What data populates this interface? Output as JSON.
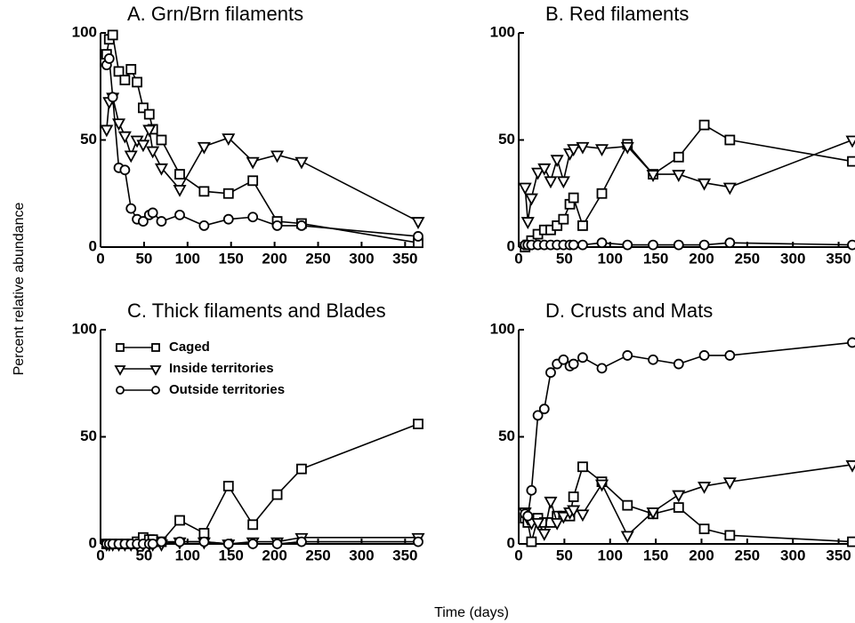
{
  "y_label": "Percent relative abundance",
  "x_label": "Time (days)",
  "chart_data": [
    {
      "type": "line",
      "title": "A.  Grn/Brn filaments",
      "x": [
        7,
        10,
        14,
        21,
        28,
        35,
        42,
        49,
        56,
        60,
        70,
        91,
        119,
        147,
        175,
        203,
        231,
        365
      ],
      "series": [
        {
          "marker": "square",
          "color": "#000",
          "values": [
            90,
            97,
            99,
            82,
            78,
            83,
            77,
            65,
            62,
            55,
            50,
            34,
            26,
            25,
            31,
            12,
            11,
            2
          ]
        },
        {
          "marker": "triangle",
          "color": "#000",
          "values": [
            55,
            68,
            70,
            58,
            52,
            43,
            50,
            48,
            55,
            45,
            37,
            27,
            47,
            51,
            40,
            43,
            40,
            12
          ]
        },
        {
          "marker": "circle",
          "color": "#000",
          "values": [
            85,
            88,
            70,
            37,
            36,
            18,
            13,
            12,
            15,
            16,
            12,
            15,
            10,
            13,
            14,
            10,
            10,
            5
          ]
        }
      ],
      "xlim": [
        0,
        365
      ],
      "xticks": [
        0,
        50,
        100,
        150,
        200,
        250,
        300,
        350
      ],
      "ylim": [
        0,
        100
      ],
      "yticks": [
        0,
        50,
        100
      ]
    },
    {
      "type": "line",
      "title": "B.  Red filaments",
      "x": [
        7,
        10,
        14,
        21,
        28,
        35,
        42,
        49,
        56,
        60,
        70,
        91,
        119,
        147,
        175,
        203,
        231,
        365
      ],
      "series": [
        {
          "marker": "square",
          "color": "#000",
          "values": [
            0,
            1,
            3,
            6,
            8,
            8,
            10,
            13,
            20,
            23,
            10,
            25,
            48,
            34,
            42,
            57,
            50,
            40
          ]
        },
        {
          "marker": "triangle",
          "color": "#000",
          "values": [
            28,
            12,
            23,
            35,
            37,
            31,
            41,
            31,
            44,
            46,
            47,
            46,
            47,
            34,
            34,
            30,
            28,
            50
          ]
        },
        {
          "marker": "circle",
          "color": "#000",
          "values": [
            1,
            1,
            1,
            1,
            1,
            1,
            1,
            1,
            1,
            1,
            1,
            2,
            1,
            1,
            1,
            1,
            2,
            1
          ]
        }
      ],
      "xlim": [
        0,
        365
      ],
      "xticks": [
        0,
        50,
        100,
        150,
        200,
        250,
        300,
        350
      ],
      "ylim": [
        0,
        100
      ],
      "yticks": [
        0,
        50,
        100
      ]
    },
    {
      "type": "line",
      "title": "C.  Thick filaments and Blades",
      "legend": "upper left",
      "x": [
        7,
        10,
        14,
        21,
        28,
        35,
        42,
        49,
        56,
        60,
        70,
        91,
        119,
        147,
        175,
        203,
        231,
        365
      ],
      "series": [
        {
          "name": "Caged",
          "marker": "square",
          "color": "#000",
          "values": [
            0,
            0,
            0,
            0,
            0,
            0,
            1,
            3,
            2,
            2,
            1,
            11,
            5,
            27,
            9,
            23,
            35,
            56
          ]
        },
        {
          "name": "Inside territories",
          "marker": "triangle",
          "color": "#000",
          "values": [
            0,
            0,
            0,
            0,
            0,
            0,
            0,
            0,
            0,
            0,
            0,
            1,
            1,
            0,
            1,
            1,
            3,
            3
          ]
        },
        {
          "name": "Outside territories",
          "marker": "circle",
          "color": "#000",
          "values": [
            0,
            0,
            0,
            0,
            0,
            0,
            0,
            0,
            0,
            0,
            1,
            1,
            1,
            0,
            0,
            0,
            1,
            1
          ]
        }
      ],
      "xlim": [
        0,
        365
      ],
      "xticks": [
        0,
        50,
        100,
        150,
        200,
        250,
        300,
        350
      ],
      "ylim": [
        0,
        100
      ],
      "yticks": [
        0,
        50,
        100
      ]
    },
    {
      "type": "line",
      "title": "D.  Crusts and Mats",
      "x": [
        7,
        10,
        14,
        21,
        28,
        35,
        42,
        49,
        56,
        60,
        70,
        91,
        119,
        147,
        175,
        203,
        231,
        365
      ],
      "series": [
        {
          "marker": "square",
          "color": "#000",
          "values": [
            12,
            10,
            1,
            12,
            10,
            10,
            13,
            13,
            13,
            22,
            36,
            29,
            18,
            14,
            17,
            7,
            4,
            1
          ]
        },
        {
          "marker": "triangle",
          "color": "#000",
          "values": [
            15,
            12,
            10,
            10,
            5,
            20,
            10,
            13,
            15,
            16,
            14,
            28,
            4,
            15,
            23,
            27,
            29,
            37
          ]
        },
        {
          "marker": "circle",
          "color": "#000",
          "values": [
            14,
            13,
            25,
            60,
            63,
            80,
            84,
            86,
            83,
            84,
            87,
            82,
            88,
            86,
            84,
            88,
            88,
            94
          ]
        }
      ],
      "xlim": [
        0,
        365
      ],
      "xticks": [
        0,
        50,
        100,
        150,
        200,
        250,
        300,
        350
      ],
      "ylim": [
        0,
        100
      ],
      "yticks": [
        0,
        50,
        100
      ]
    }
  ]
}
